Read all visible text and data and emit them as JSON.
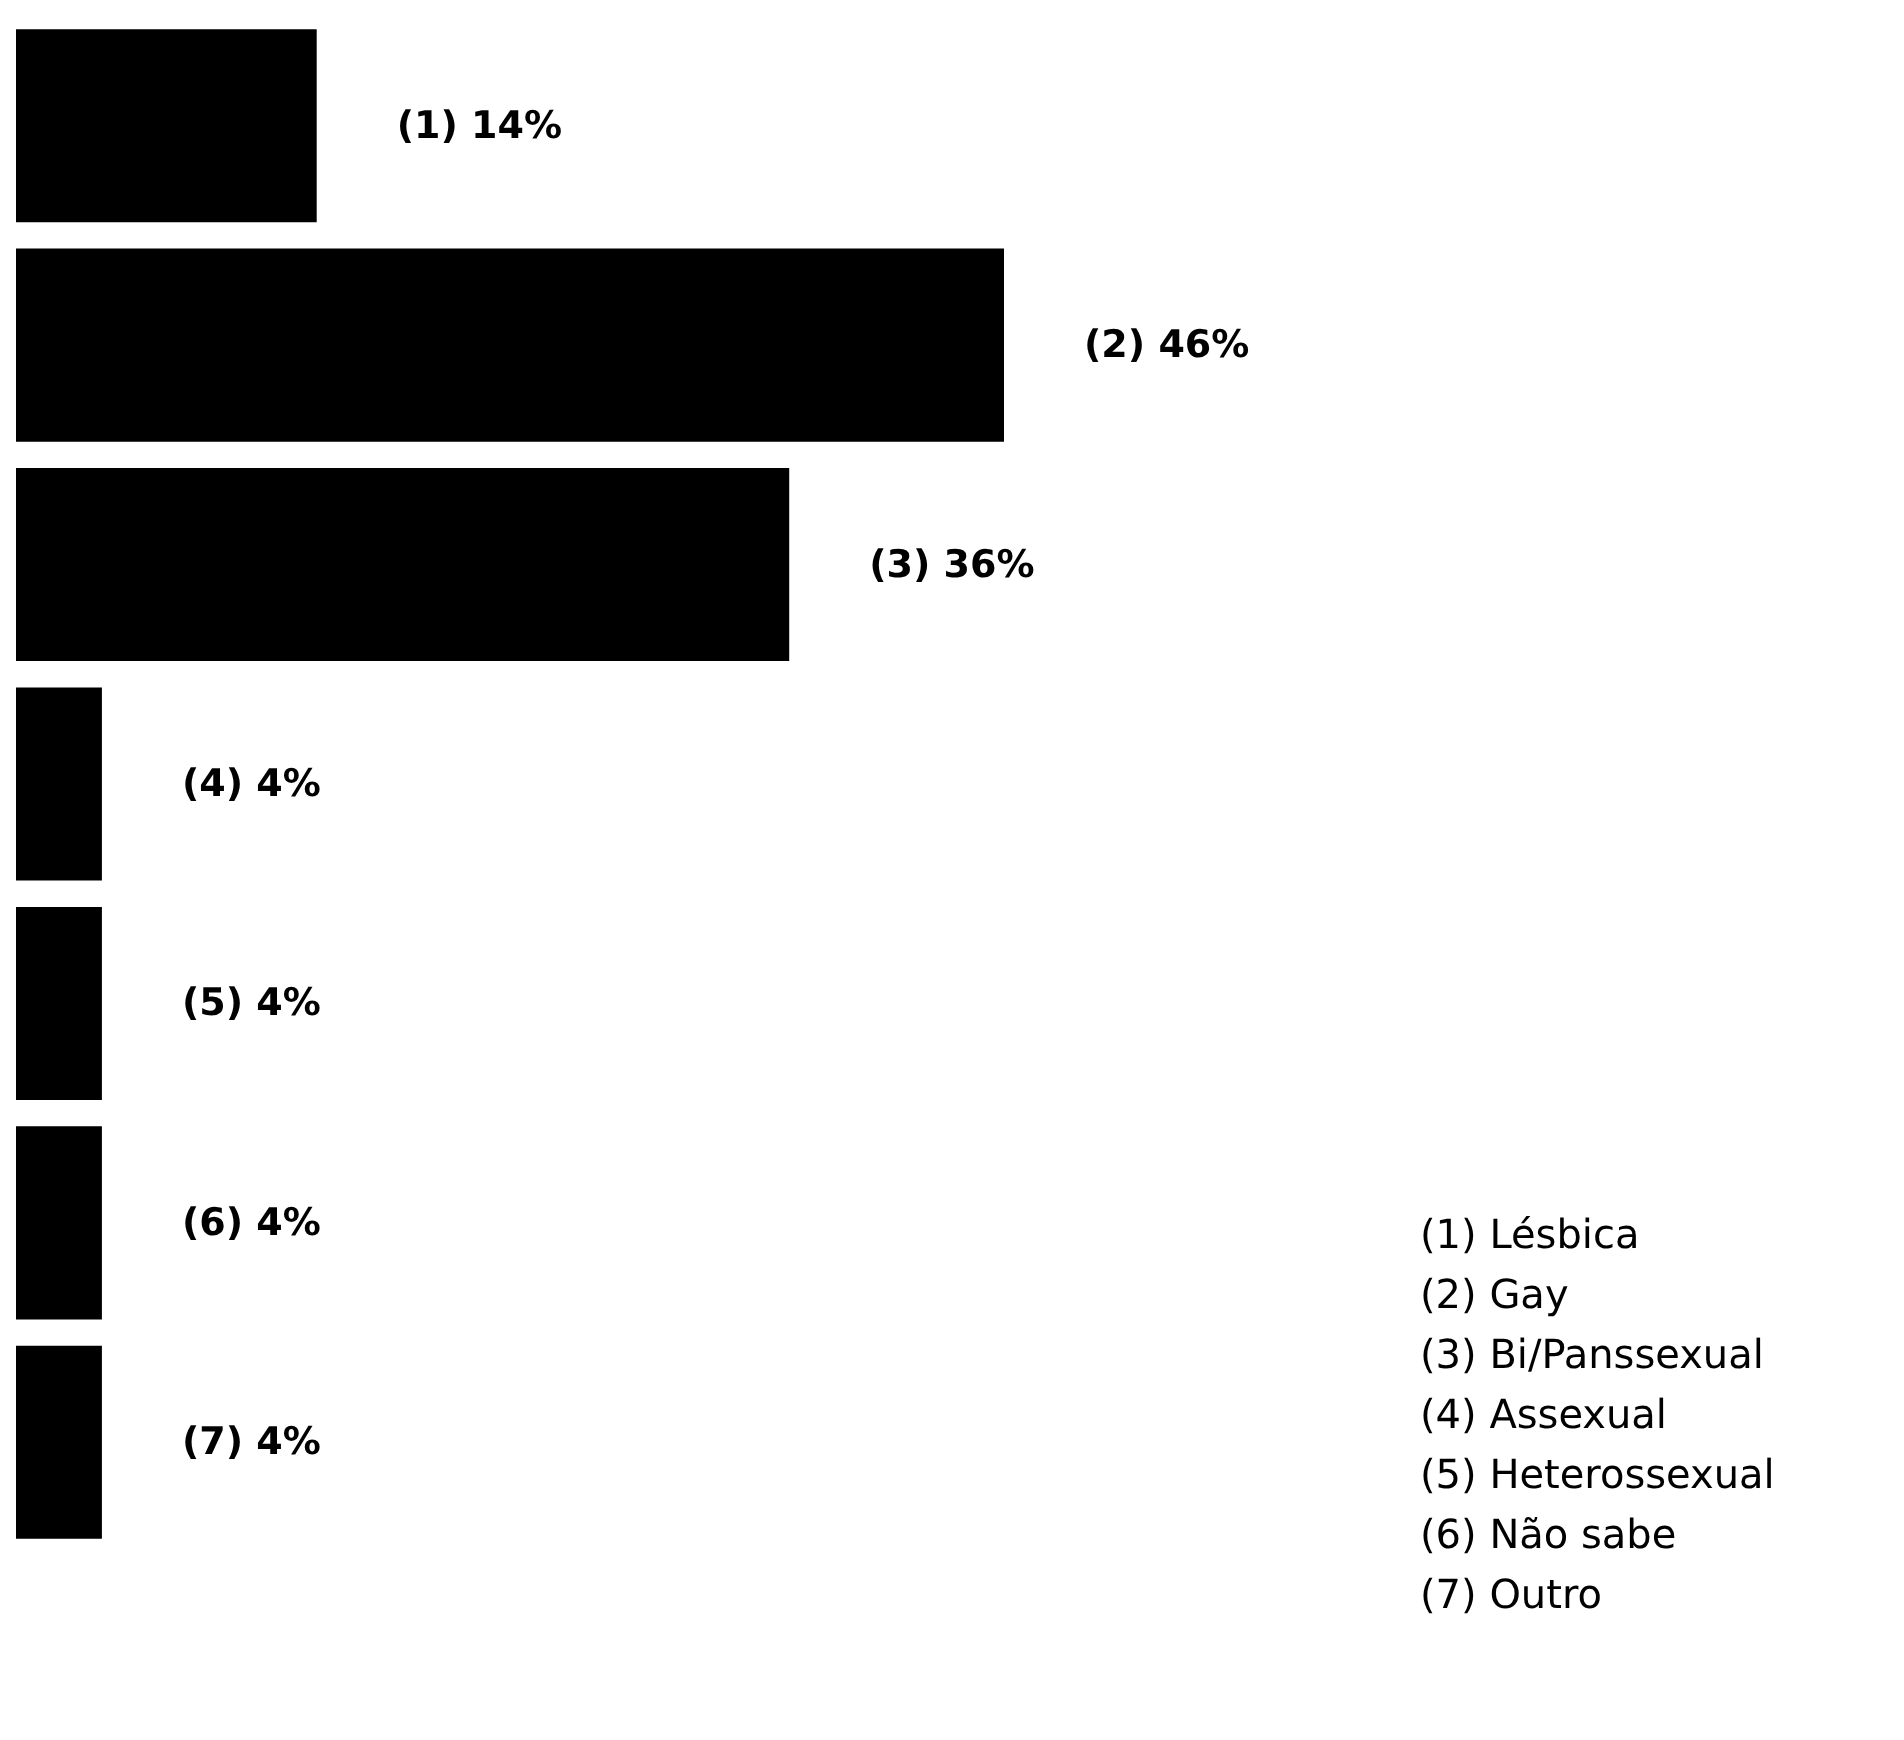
{
  "chart_data": {
    "type": "bar",
    "orientation": "horizontal",
    "categories": [
      null,
      null,
      null,
      null,
      null,
      null,
      null
    ],
    "values": [
      14,
      46,
      36,
      4,
      4,
      4,
      4
    ],
    "color": "#000000",
    "value_labels": [
      "(1) 14%",
      "(2) 46%",
      "(3) 36%",
      "(4) 4%",
      "(5) 4%",
      "(6) 4%",
      "(7) 4%"
    ],
    "annotations": [
      "(1) Lésbica",
      "(2) Gay",
      "(3) Bi/Panssexual",
      "(4) Assexual",
      "(5) Heterossexual",
      "(6) Não sabe",
      "(7) Outro"
    ]
  }
}
